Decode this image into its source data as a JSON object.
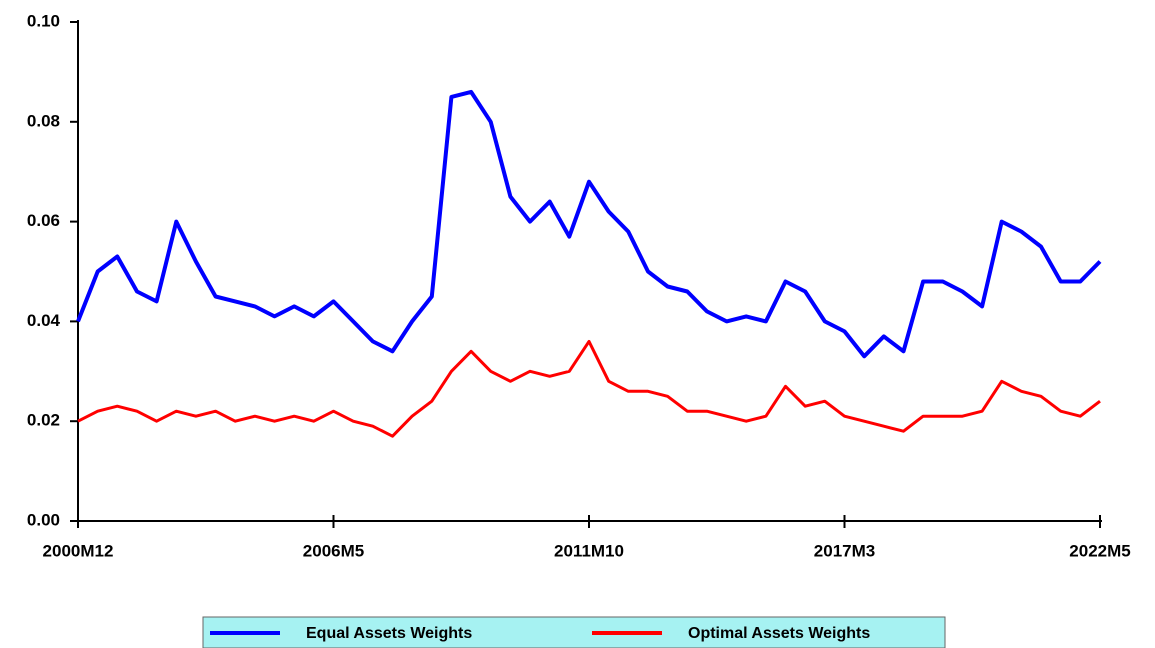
{
  "chart_data": {
    "type": "line",
    "categories": [
      "2000M12",
      null,
      null,
      null,
      null,
      null,
      null,
      null,
      null,
      null,
      null,
      null,
      null,
      "2006M5",
      null,
      null,
      null,
      null,
      null,
      null,
      null,
      null,
      null,
      null,
      null,
      null,
      "2011M10",
      null,
      null,
      null,
      null,
      null,
      null,
      null,
      null,
      null,
      null,
      null,
      null,
      "2017M3",
      null,
      null,
      null,
      null,
      null,
      null,
      null,
      null,
      null,
      null,
      null,
      null,
      "2022M5"
    ],
    "series": [
      {
        "name": "Equal Assets Weights",
        "color": "#0000ff",
        "values": [
          0.04,
          0.05,
          0.053,
          0.046,
          0.044,
          0.06,
          0.052,
          0.045,
          0.044,
          0.043,
          0.041,
          0.043,
          0.041,
          0.044,
          0.04,
          0.036,
          0.034,
          0.04,
          0.045,
          0.085,
          0.086,
          0.08,
          0.065,
          0.06,
          0.064,
          0.057,
          0.068,
          0.062,
          0.058,
          0.05,
          0.047,
          0.046,
          0.042,
          0.04,
          0.041,
          0.04,
          0.048,
          0.046,
          0.04,
          0.038,
          0.033,
          0.037,
          0.034,
          0.048,
          0.048,
          0.046,
          0.043,
          0.06,
          0.058,
          0.055,
          0.048,
          0.048,
          0.052
        ]
      },
      {
        "name": "Optimal Assets Weights",
        "color": "#ff0000",
        "values": [
          0.02,
          0.022,
          0.023,
          0.022,
          0.02,
          0.022,
          0.021,
          0.022,
          0.02,
          0.021,
          0.02,
          0.021,
          0.02,
          0.022,
          0.02,
          0.019,
          0.017,
          0.021,
          0.024,
          0.03,
          0.034,
          0.03,
          0.028,
          0.03,
          0.029,
          0.03,
          0.036,
          0.028,
          0.026,
          0.026,
          0.025,
          0.022,
          0.022,
          0.021,
          0.02,
          0.021,
          0.027,
          0.023,
          0.024,
          0.021,
          0.02,
          0.019,
          0.018,
          0.021,
          0.021,
          0.021,
          0.022,
          0.028,
          0.026,
          0.025,
          0.022,
          0.021,
          0.024
        ]
      }
    ],
    "ylim": [
      0,
      0.1
    ],
    "yticks": [
      {
        "value": 0,
        "label": "0.00"
      },
      0.02,
      0.04,
      0.06,
      0.08,
      {
        "value": 0.1,
        "label": "0.10"
      }
    ],
    "grid": false,
    "legend": "bottom"
  }
}
